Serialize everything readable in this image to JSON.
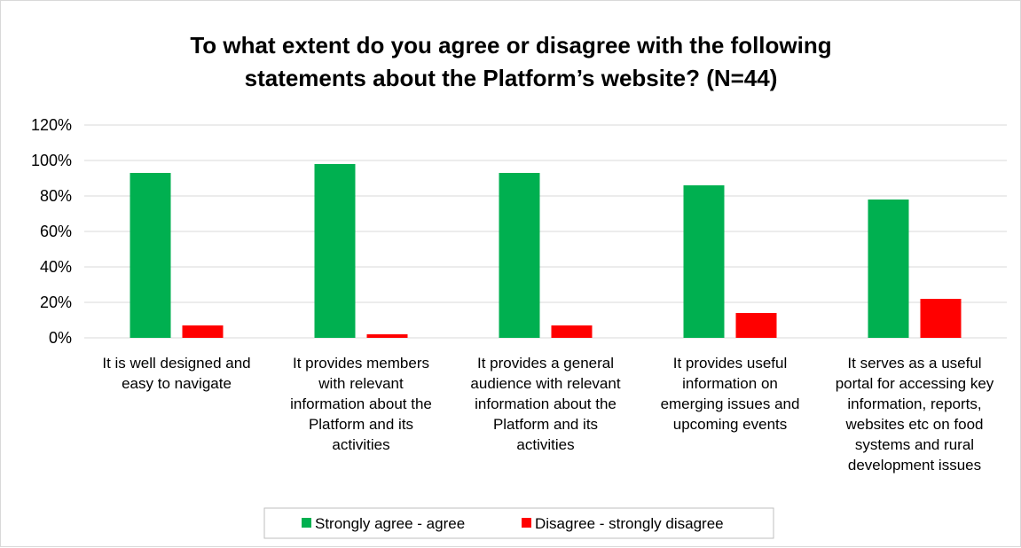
{
  "chart_data": {
    "type": "bar",
    "title_lines": [
      "To what extent do you agree or disagree with the following",
      "statements about the Platform’s website?  (N=44)"
    ],
    "categories": [
      [
        "It is well designed and",
        "easy to navigate"
      ],
      [
        "It provides members",
        "with relevant",
        "information about the",
        "Platform and its",
        "activities"
      ],
      [
        "It provides a general",
        "audience with relevant",
        "information about the",
        "Platform and its",
        "activities"
      ],
      [
        "It provides useful",
        "information on",
        "emerging issues and",
        "upcoming events"
      ],
      [
        "It serves as a useful",
        "portal for accessing key",
        "information, reports,",
        "websites etc on food",
        "systems and rural",
        "development issues"
      ]
    ],
    "series": [
      {
        "name": "Strongly agree - agree",
        "color": "#00b050",
        "values": [
          93,
          98,
          93,
          86,
          78
        ]
      },
      {
        "name": "Disagree - strongly disagree",
        "color": "#ff0000",
        "values": [
          7,
          2,
          7,
          14,
          22
        ]
      }
    ],
    "y_ticks": [
      "0%",
      "20%",
      "40%",
      "60%",
      "80%",
      "100%",
      "120%"
    ],
    "ylim": [
      0,
      120
    ],
    "grid": true,
    "legend_position": "bottom"
  }
}
